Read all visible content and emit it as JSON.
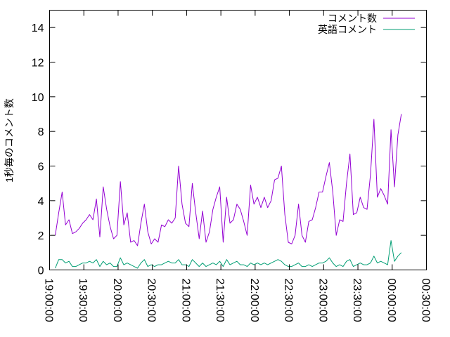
{
  "chart_data": {
    "type": "line",
    "title": "",
    "xlabel": "",
    "ylabel": "1秒毎のコメント数",
    "ylim": [
      0,
      15
    ],
    "yticks": [
      0,
      2,
      4,
      6,
      8,
      10,
      12,
      14
    ],
    "xlim": [
      "19:00:00",
      "00:30:00"
    ],
    "xticks": [
      "19:00:00",
      "19:30:00",
      "20:00:00",
      "20:30:00",
      "21:00:00",
      "21:30:00",
      "22:00:00",
      "22:30:00",
      "23:00:00",
      "23:30:00",
      "00:00:00",
      "00:30:00"
    ],
    "grid": false,
    "legend_position": "top-right",
    "x_start": "19:05:00",
    "x_step": "00:03:00",
    "series": [
      {
        "name": "コメント数",
        "color": "#9400d3",
        "values": [
          2.0,
          3.3,
          4.5,
          2.6,
          2.9,
          2.1,
          2.2,
          2.4,
          2.7,
          2.9,
          3.2,
          2.9,
          4.1,
          1.9,
          4.8,
          3.5,
          2.5,
          1.8,
          2.0,
          5.1,
          2.6,
          3.3,
          1.6,
          1.7,
          1.4,
          2.7,
          3.8,
          2.2,
          1.5,
          1.8,
          1.6,
          2.6,
          2.5,
          2.9,
          2.7,
          3.0,
          6.0,
          3.8,
          2.7,
          2.5,
          5.0,
          3.3,
          1.8,
          3.4,
          1.6,
          2.2,
          3.5,
          4.2,
          4.8,
          1.6,
          4.2,
          2.7,
          2.9,
          3.8,
          3.5,
          2.8,
          2.0,
          4.9,
          3.8,
          4.2,
          3.6,
          4.2,
          3.6,
          4.0,
          5.2,
          5.3,
          6.0,
          3.2,
          1.6,
          1.5,
          2.0,
          3.8,
          2.0,
          1.6,
          2.8,
          2.9,
          3.6,
          4.5,
          4.5,
          5.4,
          6.2,
          4.5,
          2.0,
          2.9,
          2.8,
          5.0,
          6.7,
          3.2,
          3.3,
          4.2,
          3.6,
          3.5,
          5.5,
          8.7,
          4.2,
          4.7,
          4.3,
          3.8,
          8.1,
          4.8,
          7.8,
          9.0
        ]
      },
      {
        "name": "英語コメント",
        "color": "#009e73",
        "values": [
          0.1,
          0.6,
          0.6,
          0.4,
          0.5,
          0.2,
          0.2,
          0.3,
          0.4,
          0.4,
          0.5,
          0.4,
          0.6,
          0.2,
          0.5,
          0.3,
          0.4,
          0.2,
          0.2,
          0.7,
          0.3,
          0.4,
          0.3,
          0.2,
          0.1,
          0.4,
          0.6,
          0.2,
          0.3,
          0.2,
          0.3,
          0.3,
          0.4,
          0.5,
          0.4,
          0.4,
          0.6,
          0.3,
          0.3,
          0.2,
          0.6,
          0.4,
          0.2,
          0.4,
          0.2,
          0.3,
          0.4,
          0.3,
          0.5,
          0.2,
          0.6,
          0.3,
          0.4,
          0.5,
          0.3,
          0.3,
          0.2,
          0.4,
          0.3,
          0.4,
          0.3,
          0.4,
          0.3,
          0.4,
          0.5,
          0.6,
          0.5,
          0.3,
          0.2,
          0.2,
          0.3,
          0.4,
          0.2,
          0.2,
          0.3,
          0.2,
          0.3,
          0.4,
          0.4,
          0.5,
          0.7,
          0.4,
          0.2,
          0.3,
          0.2,
          0.5,
          0.6,
          0.2,
          0.3,
          0.4,
          0.3,
          0.3,
          0.4,
          0.8,
          0.4,
          0.5,
          0.4,
          0.3,
          1.7,
          0.5,
          0.8,
          1.0
        ]
      }
    ]
  }
}
